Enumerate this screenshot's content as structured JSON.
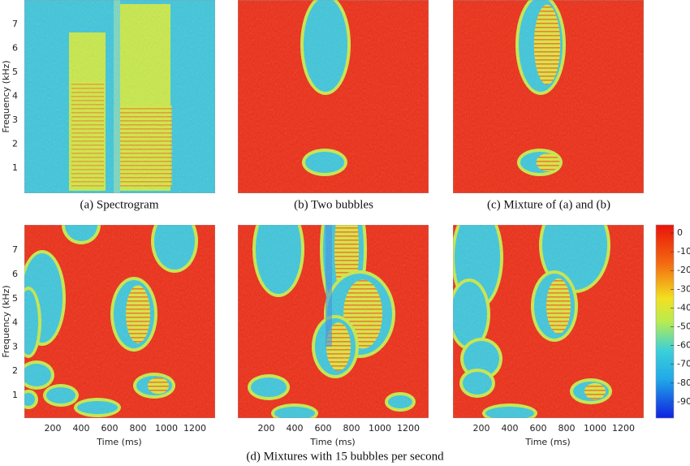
{
  "panels": [
    {
      "caption": "(a) Spectrogram"
    },
    {
      "caption": "(b) Two bubbles"
    },
    {
      "caption": "(c) Mixture of (a) and (b)"
    }
  ],
  "y_axis": {
    "label": "Frequency (kHz)",
    "ticks": [
      "1",
      "2",
      "3",
      "4",
      "5",
      "6",
      "7"
    ]
  },
  "x_axis": {
    "label": "Time (ms)",
    "ticks": [
      "200",
      "400",
      "600",
      "800",
      "1000",
      "1200"
    ]
  },
  "colorbar": {
    "ticks": [
      "0",
      "-10",
      "-20",
      "-30",
      "-40",
      "-50",
      "-60",
      "-70",
      "-80",
      "-90"
    ]
  },
  "bottom_caption": "(d) Mixtures with 15 bubbles per second"
}
